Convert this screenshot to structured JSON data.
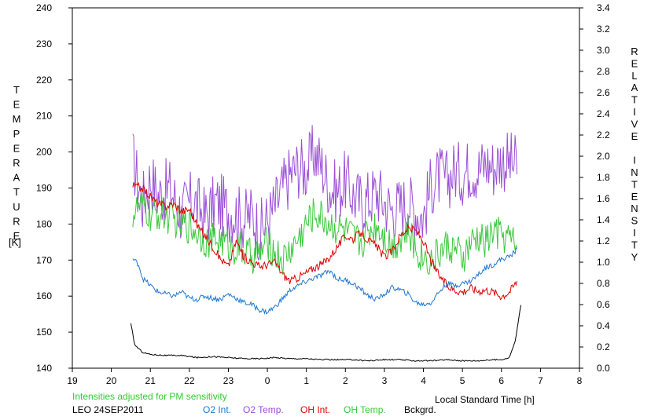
{
  "chart_data": {
    "type": "line",
    "left_axis_label": "TEMPERATURE",
    "left_axis_unit": "[K]",
    "right_axis_label": "RELATIVE INTENSITY",
    "x_axis_label": "Local Standard Time [h]",
    "x_ticks": [
      "19",
      "20",
      "21",
      "22",
      "23",
      "0",
      "1",
      "2",
      "3",
      "4",
      "5",
      "6",
      "7",
      "8"
    ],
    "y_left_range": [
      140,
      240
    ],
    "y_left_ticks": [
      "140",
      "150",
      "160",
      "170",
      "180",
      "190",
      "200",
      "210",
      "220",
      "230",
      "240"
    ],
    "y_right_range": [
      0.0,
      3.4
    ],
    "y_right_ticks": [
      "0.0",
      "0.2",
      "0.4",
      "0.6",
      "0.8",
      "1.0",
      "1.2",
      "1.4",
      "1.6",
      "1.8",
      "2.0",
      "2.2",
      "2.4",
      "2.6",
      "2.8",
      "3.0",
      "3.2",
      "3.4"
    ],
    "note": "Intensities adjusted for PM sensitivity",
    "station": "LEO 24SEP2011",
    "legend": [
      "O2 Int.",
      "O2 Temp.",
      "OH Int.",
      "OH Temp.",
      "Bckgrd."
    ],
    "colors": {
      "o2_int": "#1f77d0",
      "o2_temp": "#9b4fd6",
      "oh_int": "#e00000",
      "oh_temp": "#3cc83c",
      "bckgrd": "#000000",
      "note": "#2ecc2e"
    },
    "series": [
      {
        "key": "o2_temp",
        "axis": "left",
        "points": [
          [
            20.55,
            198
          ],
          [
            20.8,
            186
          ],
          [
            21.0,
            193
          ],
          [
            21.2,
            188
          ],
          [
            21.5,
            190
          ],
          [
            21.8,
            183
          ],
          [
            22.1,
            187
          ],
          [
            22.4,
            182
          ],
          [
            22.7,
            186
          ],
          [
            23.0,
            184
          ],
          [
            23.2,
            183
          ],
          [
            23.4,
            181
          ],
          [
            23.6,
            183
          ],
          [
            23.8,
            178
          ],
          [
            24.0,
            181
          ],
          [
            24.2,
            185
          ],
          [
            24.4,
            190
          ],
          [
            24.6,
            194
          ],
          [
            24.8,
            196
          ],
          [
            25.0,
            195
          ],
          [
            25.2,
            200
          ],
          [
            25.4,
            196
          ],
          [
            25.6,
            190
          ],
          [
            25.8,
            189
          ],
          [
            26.0,
            192
          ],
          [
            26.2,
            188
          ],
          [
            26.4,
            186
          ],
          [
            26.6,
            187
          ],
          [
            26.8,
            189
          ],
          [
            27.0,
            186
          ],
          [
            27.2,
            184
          ],
          [
            27.4,
            185
          ],
          [
            27.6,
            186
          ],
          [
            27.8,
            184
          ],
          [
            28.0,
            182
          ],
          [
            28.2,
            191
          ],
          [
            28.4,
            193
          ],
          [
            28.6,
            192
          ],
          [
            28.8,
            195
          ],
          [
            29.0,
            194
          ],
          [
            29.2,
            196
          ],
          [
            29.4,
            195
          ],
          [
            29.6,
            197
          ],
          [
            29.8,
            196
          ],
          [
            30.0,
            198
          ],
          [
            30.2,
            197
          ],
          [
            30.4,
            196
          ]
        ]
      },
      {
        "key": "oh_temp",
        "axis": "left",
        "points": [
          [
            20.55,
            183
          ],
          [
            20.8,
            185
          ],
          [
            21.0,
            182
          ],
          [
            21.3,
            183
          ],
          [
            21.6,
            181
          ],
          [
            21.9,
            180
          ],
          [
            22.2,
            178
          ],
          [
            22.5,
            175
          ],
          [
            22.8,
            176
          ],
          [
            23.0,
            174
          ],
          [
            23.3,
            173
          ],
          [
            23.6,
            171
          ],
          [
            23.8,
            172
          ],
          [
            24.0,
            175
          ],
          [
            24.2,
            172
          ],
          [
            24.4,
            170
          ],
          [
            24.6,
            173
          ],
          [
            24.8,
            176
          ],
          [
            25.0,
            180
          ],
          [
            25.2,
            183
          ],
          [
            25.4,
            182
          ],
          [
            25.6,
            180
          ],
          [
            25.8,
            179
          ],
          [
            26.0,
            178
          ],
          [
            26.2,
            176
          ],
          [
            26.4,
            175
          ],
          [
            26.6,
            178
          ],
          [
            26.8,
            180
          ],
          [
            27.0,
            177
          ],
          [
            27.2,
            174
          ],
          [
            27.4,
            176
          ],
          [
            27.6,
            178
          ],
          [
            27.8,
            173
          ],
          [
            28.0,
            171
          ],
          [
            28.2,
            170
          ],
          [
            28.4,
            172
          ],
          [
            28.6,
            174
          ],
          [
            28.8,
            173
          ],
          [
            29.0,
            170
          ],
          [
            29.2,
            174
          ],
          [
            29.4,
            176
          ],
          [
            29.6,
            175
          ],
          [
            29.8,
            178
          ],
          [
            30.0,
            177
          ],
          [
            30.2,
            176
          ],
          [
            30.4,
            174
          ]
        ]
      },
      {
        "key": "oh_int",
        "axis": "right",
        "points": [
          [
            20.55,
            1.72
          ],
          [
            20.8,
            1.7
          ],
          [
            21.0,
            1.62
          ],
          [
            21.2,
            1.55
          ],
          [
            21.4,
            1.53
          ],
          [
            21.6,
            1.55
          ],
          [
            21.8,
            1.48
          ],
          [
            22.0,
            1.5
          ],
          [
            22.2,
            1.35
          ],
          [
            22.4,
            1.25
          ],
          [
            22.6,
            1.15
          ],
          [
            22.8,
            1.03
          ],
          [
            23.0,
            0.96
          ],
          [
            23.2,
            1.2
          ],
          [
            23.4,
            1.05
          ],
          [
            23.6,
            1.0
          ],
          [
            23.8,
            0.96
          ],
          [
            24.0,
            0.98
          ],
          [
            24.2,
            1.0
          ],
          [
            24.4,
            0.88
          ],
          [
            24.6,
            0.82
          ],
          [
            24.8,
            0.86
          ],
          [
            25.0,
            0.9
          ],
          [
            25.2,
            0.95
          ],
          [
            25.4,
            0.98
          ],
          [
            25.6,
            1.05
          ],
          [
            25.8,
            1.15
          ],
          [
            26.0,
            1.25
          ],
          [
            26.2,
            1.22
          ],
          [
            26.4,
            1.28
          ],
          [
            26.6,
            1.2
          ],
          [
            26.8,
            1.15
          ],
          [
            27.0,
            1.05
          ],
          [
            27.2,
            1.1
          ],
          [
            27.4,
            1.25
          ],
          [
            27.6,
            1.32
          ],
          [
            27.8,
            1.3
          ],
          [
            28.0,
            1.2
          ],
          [
            28.2,
            1.0
          ],
          [
            28.4,
            0.88
          ],
          [
            28.6,
            0.78
          ],
          [
            28.8,
            0.74
          ],
          [
            29.0,
            0.72
          ],
          [
            29.2,
            0.76
          ],
          [
            29.4,
            0.73
          ],
          [
            29.6,
            0.74
          ],
          [
            29.8,
            0.72
          ],
          [
            30.0,
            0.68
          ],
          [
            30.2,
            0.72
          ],
          [
            30.4,
            0.82
          ]
        ]
      },
      {
        "key": "o2_int",
        "axis": "right",
        "points": [
          [
            20.55,
            1.03
          ],
          [
            20.7,
            0.98
          ],
          [
            20.8,
            0.85
          ],
          [
            21.0,
            0.78
          ],
          [
            21.2,
            0.72
          ],
          [
            21.4,
            0.7
          ],
          [
            21.6,
            0.68
          ],
          [
            21.8,
            0.72
          ],
          [
            22.0,
            0.66
          ],
          [
            22.2,
            0.65
          ],
          [
            22.4,
            0.68
          ],
          [
            22.6,
            0.66
          ],
          [
            22.8,
            0.65
          ],
          [
            23.0,
            0.7
          ],
          [
            23.2,
            0.66
          ],
          [
            23.4,
            0.62
          ],
          [
            23.6,
            0.6
          ],
          [
            23.8,
            0.55
          ],
          [
            24.0,
            0.53
          ],
          [
            24.2,
            0.58
          ],
          [
            24.4,
            0.66
          ],
          [
            24.6,
            0.74
          ],
          [
            24.8,
            0.78
          ],
          [
            25.0,
            0.82
          ],
          [
            25.2,
            0.85
          ],
          [
            25.4,
            0.88
          ],
          [
            25.6,
            0.92
          ],
          [
            25.8,
            0.84
          ],
          [
            26.0,
            0.83
          ],
          [
            26.2,
            0.8
          ],
          [
            26.4,
            0.74
          ],
          [
            26.6,
            0.68
          ],
          [
            26.8,
            0.65
          ],
          [
            27.0,
            0.7
          ],
          [
            27.2,
            0.76
          ],
          [
            27.4,
            0.74
          ],
          [
            27.6,
            0.7
          ],
          [
            27.8,
            0.62
          ],
          [
            28.0,
            0.6
          ],
          [
            28.2,
            0.62
          ],
          [
            28.4,
            0.72
          ],
          [
            28.6,
            0.8
          ],
          [
            28.8,
            0.78
          ],
          [
            29.0,
            0.8
          ],
          [
            29.2,
            0.82
          ],
          [
            29.4,
            0.88
          ],
          [
            29.6,
            0.95
          ],
          [
            29.8,
            0.98
          ],
          [
            30.0,
            1.03
          ],
          [
            30.2,
            1.05
          ],
          [
            30.4,
            1.12
          ]
        ]
      },
      {
        "key": "bckgrd",
        "axis": "right",
        "points": [
          [
            20.5,
            0.42
          ],
          [
            20.6,
            0.22
          ],
          [
            20.8,
            0.15
          ],
          [
            21.0,
            0.13
          ],
          [
            21.4,
            0.12
          ],
          [
            21.8,
            0.12
          ],
          [
            22.2,
            0.1
          ],
          [
            22.6,
            0.11
          ],
          [
            23.0,
            0.1
          ],
          [
            23.4,
            0.09
          ],
          [
            23.8,
            0.09
          ],
          [
            24.2,
            0.1
          ],
          [
            24.6,
            0.09
          ],
          [
            25.0,
            0.09
          ],
          [
            25.4,
            0.08
          ],
          [
            25.8,
            0.08
          ],
          [
            26.2,
            0.08
          ],
          [
            26.6,
            0.07
          ],
          [
            27.0,
            0.08
          ],
          [
            27.4,
            0.08
          ],
          [
            27.8,
            0.07
          ],
          [
            28.2,
            0.07
          ],
          [
            28.6,
            0.08
          ],
          [
            29.0,
            0.07
          ],
          [
            29.4,
            0.07
          ],
          [
            29.8,
            0.08
          ],
          [
            30.0,
            0.08
          ],
          [
            30.2,
            0.1
          ],
          [
            30.35,
            0.25
          ],
          [
            30.45,
            0.48
          ],
          [
            30.52,
            0.65
          ]
        ]
      }
    ]
  }
}
